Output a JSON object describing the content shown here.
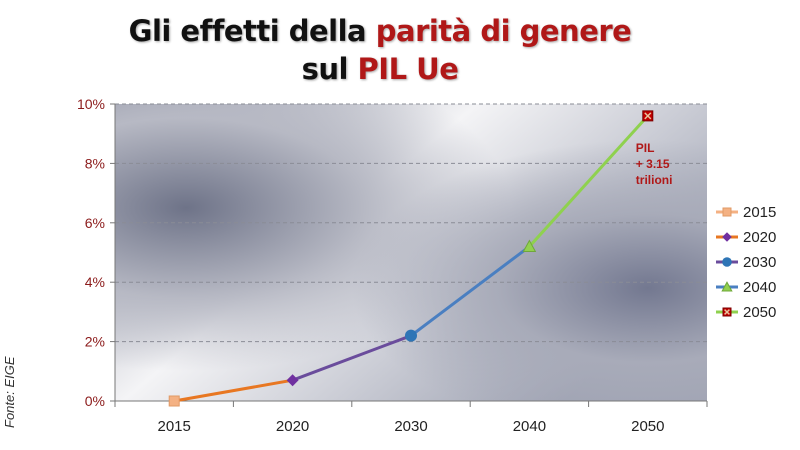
{
  "title": {
    "line1_pre": "Gli effetti della ",
    "line1_hl": "parità di genere",
    "line2_pre": "sul ",
    "line2_hl": "PIL Ue"
  },
  "source": "Fonte: EIGE",
  "colors": {
    "title_highlight": "#b01818",
    "y_tick": "#8b1a1a",
    "seg_2015_2020": "#e87722",
    "seg_2020_2030": "#6a4c9c",
    "seg_2030_2040": "#4a7fc1",
    "seg_2040_2050": "#8fd14f"
  },
  "chart_data": {
    "type": "line",
    "categories": [
      "2015",
      "2020",
      "2030",
      "2040",
      "2050"
    ],
    "values": [
      0.0,
      0.7,
      2.2,
      5.2,
      9.6
    ],
    "ylim": [
      0,
      10
    ],
    "yticks": [
      0,
      2,
      4,
      6,
      8,
      10
    ],
    "ytick_labels": [
      "0%",
      "2%",
      "4%",
      "6%",
      "8%",
      "10%"
    ],
    "grid": true,
    "legend_position": "right",
    "series": [
      {
        "name": "2015",
        "marker": "square",
        "color": "#f4b183"
      },
      {
        "name": "2020",
        "marker": "diamond",
        "color": "#7030a0"
      },
      {
        "name": "2030",
        "marker": "circle",
        "color": "#2e75b6"
      },
      {
        "name": "2040",
        "marker": "triangle",
        "color": "#92d050"
      },
      {
        "name": "2050",
        "marker": "x-square",
        "color": "#c00000"
      }
    ],
    "annotation": [
      "PIL",
      "+ 3.15",
      "trilioni"
    ]
  }
}
